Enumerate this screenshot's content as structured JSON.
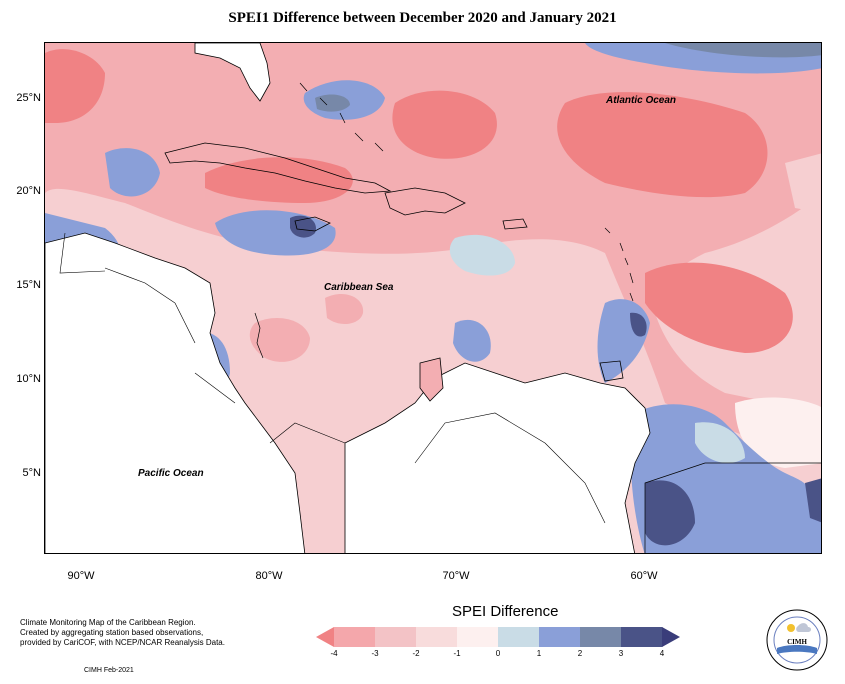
{
  "title": "SPEI1 Difference between December 2020 and January 2021",
  "map": {
    "latitude_ticks": [
      "25°N",
      "20°N",
      "15°N",
      "10°N",
      "5°N"
    ],
    "longitude_ticks": [
      "90°W",
      "80°W",
      "70°W",
      "60°W"
    ],
    "labels": {
      "atlantic": "Atlantic Ocean",
      "caribbean": "Caribbean Sea",
      "pacific": "Pacific Ocean"
    }
  },
  "legend": {
    "title": "SPEI Difference",
    "ticks": [
      "-4",
      "-3",
      "-2",
      "-1",
      "0",
      "1",
      "2",
      "3",
      "4"
    ],
    "colors": [
      "#f08284",
      "#f4a7ab",
      "#f3c3c6",
      "#f8dcdc",
      "#fdf0ef",
      "#c9dce6",
      "#8a9fd8",
      "#7788a8",
      "#4a5387",
      "#3a3d7a"
    ]
  },
  "credits": {
    "line1": "Climate Monitoring Map of the Caribbean Region.",
    "line2": "Created by aggregating station based observations,",
    "line3": "provided by CariCOF, with NCEP/NCAR Reanalysis Data.",
    "footer": "CIMH Feb-2021"
  },
  "logo": {
    "text": "CIMH"
  }
}
